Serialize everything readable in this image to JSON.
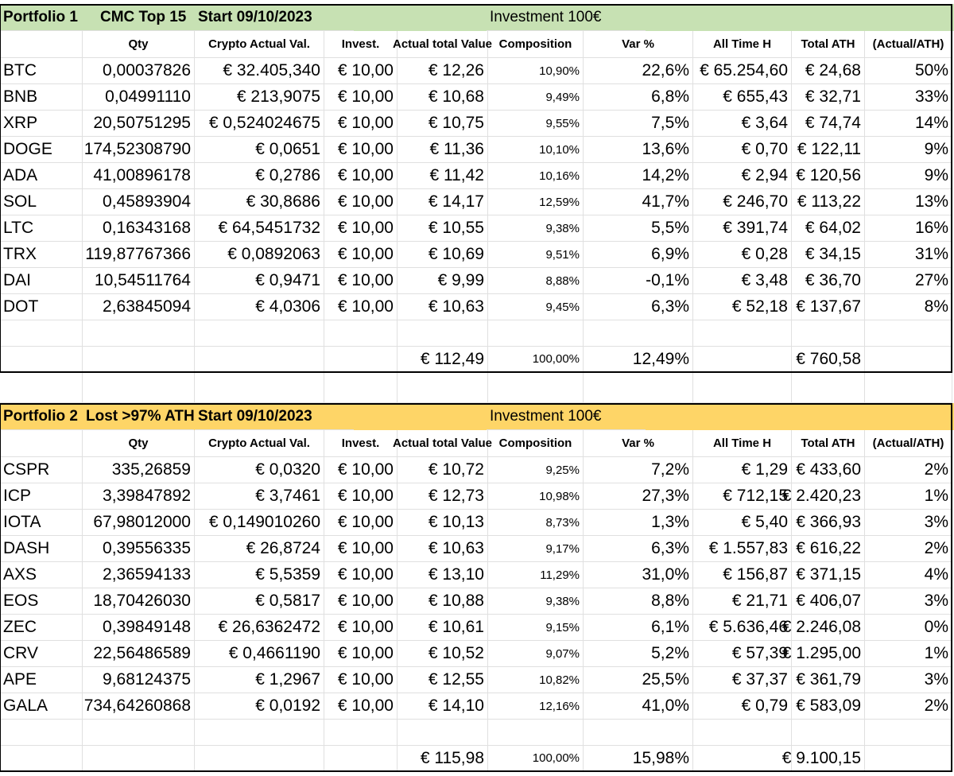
{
  "portfolios": [
    {
      "title": "Portfolio 1",
      "subtitle": "CMC Top 15",
      "start": "Start 09/10/2023",
      "investment": "Investment 100€",
      "color": "#c7e1b3",
      "headers": [
        "Qty",
        "Crypto Actual Val.",
        "Invest.",
        "Actual total Value",
        "Composition",
        "Var %",
        "All Time H",
        "Total ATH",
        "(Actual/ATH)"
      ],
      "rows": [
        [
          "BTC",
          "0,00037826",
          "€ 32.405,340",
          "€ 10,00",
          "€ 12,26",
          "10,90%",
          "22,6%",
          "€ 65.254,60",
          "€ 24,68",
          "50%"
        ],
        [
          "BNB",
          "0,04991110",
          "€ 213,9075",
          "€ 10,00",
          "€ 10,68",
          "9,49%",
          "6,8%",
          "€ 655,43",
          "€ 32,71",
          "33%"
        ],
        [
          "XRP",
          "20,50751295",
          "€ 0,524024675",
          "€ 10,00",
          "€ 10,75",
          "9,55%",
          "7,5%",
          "€ 3,64",
          "€ 74,74",
          "14%"
        ],
        [
          "DOGE",
          "174,52308790",
          "€ 0,0651",
          "€ 10,00",
          "€ 11,36",
          "10,10%",
          "13,6%",
          "€ 0,70",
          "€ 122,11",
          "9%"
        ],
        [
          "ADA",
          "41,00896178",
          "€ 0,2786",
          "€ 10,00",
          "€ 11,42",
          "10,16%",
          "14,2%",
          "€ 2,94",
          "€ 120,56",
          "9%"
        ],
        [
          "SOL",
          "0,45893904",
          "€ 30,8686",
          "€ 10,00",
          "€ 14,17",
          "12,59%",
          "41,7%",
          "€ 246,70",
          "€ 113,22",
          "13%"
        ],
        [
          "LTC",
          "0,16343168",
          "€ 64,5451732",
          "€ 10,00",
          "€ 10,55",
          "9,38%",
          "5,5%",
          "€ 391,74",
          "€ 64,02",
          "16%"
        ],
        [
          "TRX",
          "119,87767366",
          "€ 0,0892063",
          "€ 10,00",
          "€ 10,69",
          "9,51%",
          "6,9%",
          "€ 0,28",
          "€ 34,15",
          "31%"
        ],
        [
          "DAI",
          "10,54511764",
          "€ 0,9471",
          "€ 10,00",
          "€ 9,99",
          "8,88%",
          "-0,1%",
          "€ 3,48",
          "€ 36,70",
          "27%"
        ],
        [
          "DOT",
          "2,63845094",
          "€ 4,0306",
          "€ 10,00",
          "€ 10,63",
          "9,45%",
          "6,3%",
          "€ 52,18",
          "€ 137,67",
          "8%"
        ]
      ],
      "totals": {
        "actual_total": "€ 112,49",
        "composition": "100,00%",
        "var": "12,49%",
        "total_ath": "€ 760,58"
      }
    },
    {
      "title": "Portfolio 2",
      "subtitle": "Lost >97% ATH",
      "start": "Start 09/10/2023",
      "investment": "Investment 100€",
      "color": "#fed567",
      "headers": [
        "Qty",
        "Crypto Actual Val.",
        "Invest.",
        "Actual total Value",
        "Composition",
        "Var %",
        "All Time H",
        "Total ATH",
        "(Actual/ATH)"
      ],
      "rows": [
        [
          "CSPR",
          "335,26859",
          "€ 0,0320",
          "€ 10,00",
          "€ 10,72",
          "9,25%",
          "7,2%",
          "€ 1,29",
          "€ 433,60",
          "2%"
        ],
        [
          "ICP",
          "3,39847892",
          "€ 3,7461",
          "€ 10,00",
          "€ 12,73",
          "10,98%",
          "27,3%",
          "€ 712,15",
          "€ 2.420,23",
          "1%"
        ],
        [
          "IOTA",
          "67,98012000",
          "€ 0,149010260",
          "€ 10,00",
          "€ 10,13",
          "8,73%",
          "1,3%",
          "€ 5,40",
          "€ 366,93",
          "3%"
        ],
        [
          "DASH",
          "0,39556335",
          "€ 26,8724",
          "€ 10,00",
          "€ 10,63",
          "9,17%",
          "6,3%",
          "€ 1.557,83",
          "€ 616,22",
          "2%"
        ],
        [
          "AXS",
          "2,36594133",
          "€ 5,5359",
          "€ 10,00",
          "€ 13,10",
          "11,29%",
          "31,0%",
          "€ 156,87",
          "€ 371,15",
          "4%"
        ],
        [
          "EOS",
          "18,70426030",
          "€ 0,5817",
          "€ 10,00",
          "€ 10,88",
          "9,38%",
          "8,8%",
          "€ 21,71",
          "€ 406,07",
          "3%"
        ],
        [
          "ZEC",
          "0,39849148",
          "€ 26,6362472",
          "€ 10,00",
          "€ 10,61",
          "9,15%",
          "6,1%",
          "€ 5.636,46",
          "€ 2.246,08",
          "0%"
        ],
        [
          "CRV",
          "22,56486589",
          "€ 0,4661190",
          "€ 10,00",
          "€ 10,52",
          "9,07%",
          "5,2%",
          "€ 57,39",
          "€ 1.295,00",
          "1%"
        ],
        [
          "APE",
          "9,68124375",
          "€ 1,2967",
          "€ 10,00",
          "€ 12,55",
          "10,82%",
          "25,5%",
          "€ 37,37",
          "€ 361,79",
          "3%"
        ],
        [
          "GALA",
          "734,64260868",
          "€ 0,0192",
          "€ 10,00",
          "€ 14,10",
          "12,16%",
          "41,0%",
          "€ 0,79",
          "€ 583,09",
          "2%"
        ]
      ],
      "totals": {
        "actual_total": "€ 115,98",
        "composition": "100,00%",
        "var": "15,98%",
        "total_ath": "€ 9.100,15"
      }
    }
  ]
}
